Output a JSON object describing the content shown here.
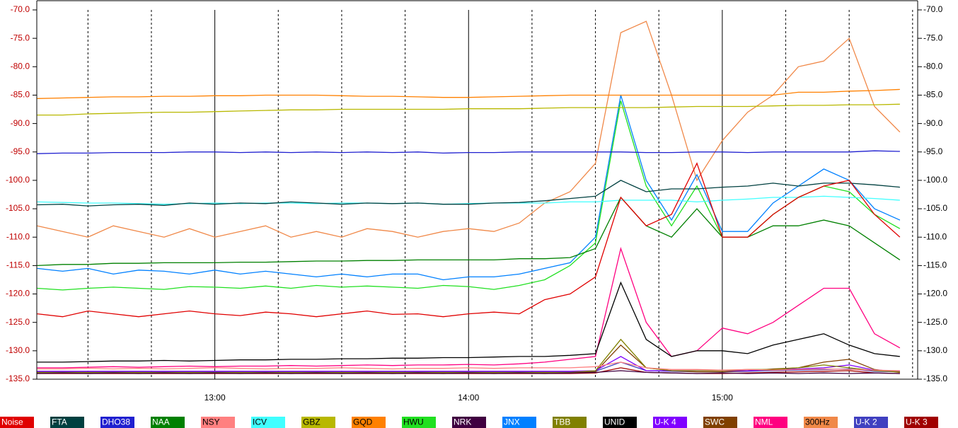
{
  "chart_data": {
    "type": "line",
    "x": [
      738,
      744,
      750,
      756,
      762,
      768,
      774,
      780,
      786,
      792,
      798,
      804,
      810,
      816,
      822,
      828,
      834,
      840,
      846,
      852,
      858,
      864,
      870,
      876,
      882,
      888,
      894,
      900,
      906,
      912,
      918,
      924,
      930,
      936,
      942
    ],
    "xlim": [
      737.9,
      946.2
    ],
    "xticks": [
      {
        "value": 780,
        "label": "13:00"
      },
      {
        "value": 840,
        "label": "14:00"
      },
      {
        "value": 900,
        "label": "15:00"
      }
    ],
    "minor_xticks": [
      750,
      765,
      795,
      810,
      825,
      855,
      870,
      885,
      915,
      930,
      945
    ],
    "ylim": [
      -135,
      -70
    ],
    "yticks": [
      {
        "value": -70,
        "label": "-70.0"
      },
      {
        "value": -75,
        "label": "-75.0"
      },
      {
        "value": -80,
        "label": "-80.0"
      },
      {
        "value": -85,
        "label": "-85.0"
      },
      {
        "value": -90,
        "label": "-90.0"
      },
      {
        "value": -95,
        "label": "-95.0"
      },
      {
        "value": -100,
        "label": "-100.0"
      },
      {
        "value": -105,
        "label": "-105.0"
      },
      {
        "value": -110,
        "label": "-110.0"
      },
      {
        "value": -115,
        "label": "-115.0"
      },
      {
        "value": -120,
        "label": "-120.0"
      },
      {
        "value": -125,
        "label": "-125.0"
      },
      {
        "value": -130,
        "label": "-130.0"
      },
      {
        "value": -135,
        "label": "-135.0"
      }
    ],
    "grid": true,
    "legend": "bottom",
    "series": [
      {
        "name": "Noise",
        "color": "#e00000",
        "values": [
          -123.5,
          -124,
          -123,
          -123.5,
          -124,
          -123.5,
          -123,
          -123.5,
          -123.8,
          -123.2,
          -123.5,
          -124,
          -123.5,
          -123,
          -123.6,
          -123.5,
          -124,
          -123.5,
          -123.2,
          -123.5,
          -121,
          -120,
          -117,
          -103,
          -108,
          -106,
          -97,
          -110,
          -110,
          -106,
          -103,
          -101,
          -100,
          -106,
          -110
        ]
      },
      {
        "name": "FTA",
        "color": "#004040",
        "values": [
          -104.3,
          -104.2,
          -104.5,
          -104.3,
          -104.2,
          -104.4,
          -104,
          -104.2,
          -104,
          -104.1,
          -103.8,
          -104,
          -104.2,
          -104,
          -104.1,
          -104,
          -104.2,
          -104.2,
          -104,
          -103.9,
          -103.6,
          -103.2,
          -102.8,
          -100,
          -102,
          -101.5,
          -101.5,
          -101.2,
          -101,
          -100.5,
          -101,
          -100.5,
          -100.5,
          -100.8,
          -101.2
        ]
      },
      {
        "name": "DHO38",
        "color": "#2020d0",
        "values": [
          -95.3,
          -95.2,
          -95.2,
          -95.1,
          -95.1,
          -95.1,
          -95,
          -95,
          -95.1,
          -95,
          -95.1,
          -95,
          -95.1,
          -95,
          -95.1,
          -95,
          -95.2,
          -95.1,
          -95.1,
          -95,
          -95,
          -95,
          -95,
          -95,
          -95.1,
          -95.1,
          -95,
          -95,
          -95.1,
          -95,
          -95,
          -95,
          -95,
          -94.8,
          -94.9
        ]
      },
      {
        "name": "NAA",
        "color": "#008000",
        "values": [
          -115,
          -114.8,
          -114.8,
          -114.6,
          -114.6,
          -114.5,
          -114.5,
          -114.5,
          -114.4,
          -114.4,
          -114.3,
          -114.2,
          -114.2,
          -114.1,
          -114.1,
          -114,
          -114,
          -114,
          -114,
          -113.8,
          -113.8,
          -113.6,
          -112,
          -103,
          -108,
          -110,
          -105,
          -110,
          -110,
          -108,
          -108,
          -107,
          -108,
          -111,
          -114
        ]
      },
      {
        "name": "NSY",
        "color": "#ff8080",
        "values": [
          -133.2,
          -133.2,
          -133.1,
          -133.2,
          -133.1,
          -133.2,
          -133.1,
          -133,
          -133.1,
          -133.2,
          -133.1,
          -133.1,
          -133,
          -133.1,
          -133.2,
          -133.1,
          -133.1,
          -133,
          -133.1,
          -133,
          -133,
          -133,
          -132.8,
          -132,
          -133,
          -133.3,
          -133.3,
          -133.4,
          -133.3,
          -133.4,
          -133.3,
          -133.2,
          -133.3,
          -133.4,
          -133.5
        ]
      },
      {
        "name": "ICV",
        "color": "#40ffff",
        "values": [
          -103.8,
          -103.9,
          -104,
          -104,
          -104.1,
          -104.2,
          -104.1,
          -104,
          -104.1,
          -104,
          -104,
          -104.1,
          -104,
          -104,
          -104.1,
          -104,
          -104.2,
          -104.1,
          -104,
          -104,
          -104,
          -103.8,
          -103.8,
          -103.5,
          -103.5,
          -103.5,
          -103.8,
          -103.5,
          -103.3,
          -103,
          -103,
          -102.8,
          -103,
          -103.2,
          -103.5
        ]
      },
      {
        "name": "GBZ",
        "color": "#b8b800",
        "values": [
          -88.5,
          -88.5,
          -88.3,
          -88.2,
          -88.1,
          -88,
          -88,
          -87.9,
          -87.8,
          -87.7,
          -87.6,
          -87.6,
          -87.5,
          -87.5,
          -87.5,
          -87.5,
          -87.5,
          -87.4,
          -87.4,
          -87.4,
          -87.3,
          -87.2,
          -87.2,
          -87.2,
          -87.2,
          -87.1,
          -87,
          -87,
          -87,
          -86.9,
          -86.8,
          -86.8,
          -86.7,
          -86.7,
          -86.6
        ]
      },
      {
        "name": "GQD",
        "color": "#ff8000",
        "values": [
          -85.6,
          -85.5,
          -85.4,
          -85.3,
          -85.3,
          -85.2,
          -85.2,
          -85.1,
          -85.1,
          -85,
          -85,
          -85,
          -85.1,
          -85.2,
          -85.2,
          -85.3,
          -85.4,
          -85.4,
          -85.3,
          -85.2,
          -85.1,
          -85,
          -85,
          -85,
          -85,
          -85,
          -85,
          -85,
          -85,
          -85,
          -84.5,
          -84.5,
          -84.3,
          -84.2,
          -84
        ]
      },
      {
        "name": "HWU",
        "color": "#20e020",
        "values": [
          -119,
          -119.3,
          -119,
          -118.8,
          -119,
          -119.2,
          -118.7,
          -118.8,
          -119,
          -118.6,
          -119,
          -118.5,
          -118.8,
          -118.6,
          -118.8,
          -119,
          -118.5,
          -118.7,
          -119.2,
          -118.5,
          -117.5,
          -115,
          -111,
          -86,
          -101,
          -108,
          -101,
          -110,
          -110,
          -106,
          -103,
          -101,
          -102,
          -106,
          -108.5
        ]
      },
      {
        "name": "NRK",
        "color": "#400040",
        "values": [
          -134,
          -133.9,
          -134,
          -133.9,
          -134,
          -133.9,
          -134,
          -133.9,
          -134,
          -133.9,
          -134,
          -133.9,
          -134,
          -133.9,
          -134,
          -133.9,
          -134,
          -133.9,
          -134,
          -133.9,
          -134,
          -133.9,
          -133.8,
          -133.5,
          -133.8,
          -133.9,
          -134,
          -133.9,
          -134,
          -133.9,
          -134,
          -133.9,
          -134,
          -133.9,
          -134
        ]
      },
      {
        "name": "JNX",
        "color": "#0080ff",
        "values": [
          -115.5,
          -116,
          -115.5,
          -116.5,
          -115.8,
          -116,
          -116.5,
          -115.8,
          -116.5,
          -116,
          -116.5,
          -117,
          -116.5,
          -117,
          -116.5,
          -116.5,
          -117.5,
          -117,
          -117,
          -116.5,
          -115.5,
          -114.5,
          -110,
          -85,
          -100,
          -107,
          -99,
          -109,
          -109,
          -104,
          -101,
          -98,
          -100,
          -105,
          -107
        ]
      },
      {
        "name": "TBB",
        "color": "#808000",
        "values": [
          -133.8,
          -133.8,
          -133.8,
          -133.8,
          -133.8,
          -133.8,
          -133.8,
          -133.8,
          -133.8,
          -133.8,
          -133.8,
          -133.8,
          -133.8,
          -133.8,
          -133.8,
          -133.8,
          -133.8,
          -133.8,
          -133.8,
          -133.8,
          -133.8,
          -133.8,
          -133.5,
          -128,
          -133,
          -133.5,
          -133.5,
          -133.5,
          -133.3,
          -133.3,
          -133,
          -132.5,
          -133,
          -133.5,
          -133.7
        ]
      },
      {
        "name": "UNID",
        "color": "#000000",
        "values": [
          -132,
          -132,
          -131.9,
          -131.8,
          -131.8,
          -131.7,
          -131.8,
          -131.7,
          -131.6,
          -131.6,
          -131.5,
          -131.5,
          -131.4,
          -131.4,
          -131.3,
          -131.3,
          -131.2,
          -131.2,
          -131.1,
          -131,
          -131,
          -130.8,
          -130.5,
          -118,
          -128,
          -131,
          -130,
          -130,
          -130.5,
          -129,
          -128,
          -127,
          -129,
          -130.5,
          -131
        ]
      },
      {
        "name": "U-K 4",
        "color": "#8000ff",
        "values": [
          -133.6,
          -133.6,
          -133.6,
          -133.6,
          -133.6,
          -133.6,
          -133.6,
          -133.6,
          -133.6,
          -133.6,
          -133.6,
          -133.6,
          -133.6,
          -133.6,
          -133.6,
          -133.6,
          -133.6,
          -133.6,
          -133.6,
          -133.6,
          -133.6,
          -133.6,
          -133.5,
          -131,
          -133.5,
          -133.5,
          -133.5,
          -133.5,
          -133.5,
          -133.3,
          -133.2,
          -133,
          -132.5,
          -133.4,
          -133.6
        ]
      },
      {
        "name": "SWC",
        "color": "#804000",
        "values": [
          -133.9,
          -133.9,
          -133.9,
          -133.9,
          -133.9,
          -133.9,
          -133.9,
          -133.9,
          -133.9,
          -133.9,
          -133.9,
          -133.9,
          -133.9,
          -133.9,
          -133.9,
          -133.9,
          -133.9,
          -133.9,
          -133.9,
          -133.9,
          -133.9,
          -133.9,
          -133.7,
          -129,
          -133,
          -133.5,
          -133.7,
          -133.7,
          -133.5,
          -133.2,
          -133,
          -132,
          -131.5,
          -133.3,
          -133.8
        ]
      },
      {
        "name": "NML",
        "color": "#ff0080",
        "values": [
          -133,
          -133,
          -132.9,
          -132.8,
          -132.9,
          -132.8,
          -132.7,
          -132.8,
          -132.7,
          -132.7,
          -132.6,
          -132.7,
          -132.6,
          -132.5,
          -132.6,
          -132.5,
          -132.5,
          -132.4,
          -132.5,
          -132.3,
          -132,
          -131.5,
          -131,
          -112,
          -125,
          -131,
          -130,
          -126,
          -127,
          -125,
          -122,
          -119,
          -119,
          -127,
          -129.5
        ]
      },
      {
        "name": "300Hz",
        "color": "#f08848",
        "values": [
          -108,
          -109,
          -110,
          -108,
          -109,
          -110,
          -108.5,
          -110,
          -109,
          -108,
          -110,
          -109,
          -110,
          -108.5,
          -109,
          -110,
          -109,
          -108.5,
          -109,
          -107.5,
          -104,
          -102,
          -97,
          -74,
          -72,
          -85,
          -100,
          -93,
          -88,
          -85,
          -80,
          -79,
          -75,
          -87,
          -91.5
        ]
      },
      {
        "name": "U-K 2",
        "color": "#4040c0",
        "values": [
          -133.7,
          -133.7,
          -133.7,
          -133.7,
          -133.7,
          -133.7,
          -133.7,
          -133.7,
          -133.7,
          -133.7,
          -133.7,
          -133.7,
          -133.7,
          -133.7,
          -133.7,
          -133.7,
          -133.7,
          -133.7,
          -133.7,
          -133.7,
          -133.7,
          -133.7,
          -133.6,
          -132,
          -133.5,
          -133.6,
          -133.7,
          -133.7,
          -133.6,
          -133.5,
          -133.4,
          -133.3,
          -133.2,
          -133.6,
          -133.7
        ]
      },
      {
        "name": "U-K 3",
        "color": "#a00000",
        "values": [
          -134,
          -134,
          -134,
          -134,
          -134,
          -134,
          -134,
          -134,
          -134,
          -134,
          -134,
          -134,
          -134,
          -134,
          -134,
          -134,
          -134,
          -134,
          -134,
          -134,
          -134,
          -134,
          -133.9,
          -133,
          -133.8,
          -133.9,
          -134,
          -134,
          -133.9,
          -133.8,
          -133.7,
          -133.6,
          -133.5,
          -133.9,
          -134
        ]
      }
    ]
  }
}
